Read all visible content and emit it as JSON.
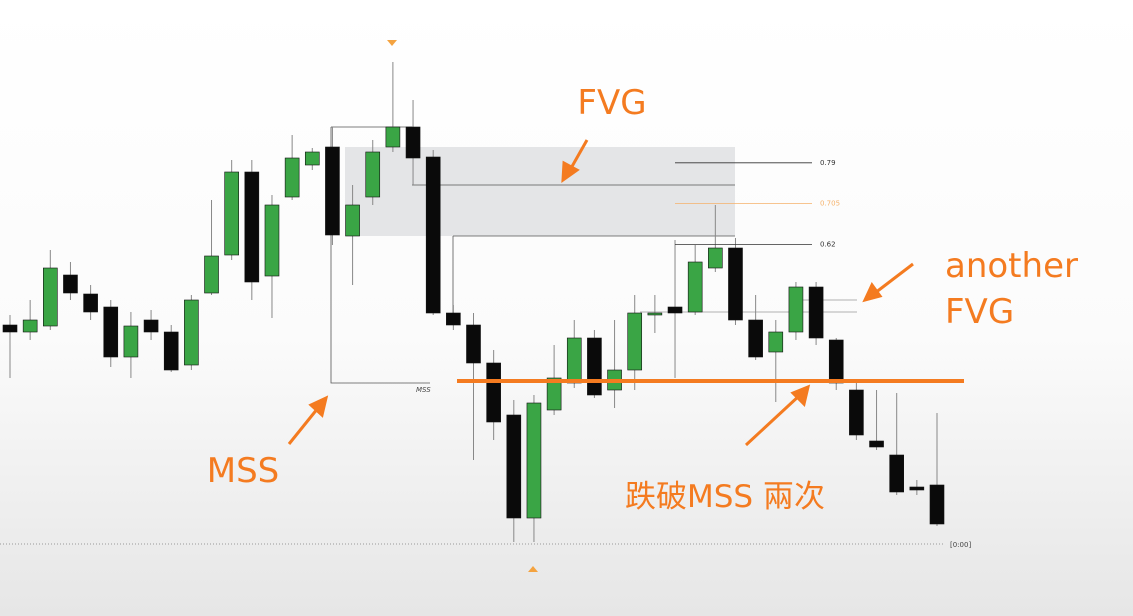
{
  "chart_data": {
    "type": "candlestick",
    "open": [
      44,
      42.6,
      43.8,
      54,
      50.2,
      47.6,
      37.6,
      45,
      42.6,
      36,
      50.4,
      58,
      74.6,
      53.8,
      69.6,
      76,
      79.6,
      61.8,
      69.6,
      79.6,
      83.6,
      77.6,
      46.4,
      44,
      36.4,
      26,
      5.4,
      27,
      32.4,
      41.4,
      31,
      35,
      46,
      47.6,
      46.6,
      55.4,
      59.4,
      45,
      38.6,
      42.6,
      51.6,
      41,
      31,
      20.8,
      18,
      11.6,
      12
    ],
    "high": [
      46,
      49,
      59,
      56.6,
      52,
      49,
      46.6,
      47,
      44,
      50,
      69,
      77,
      77,
      70,
      82,
      79.4,
      83.6,
      72,
      81,
      96.6,
      89,
      79,
      48,
      46.4,
      39,
      29,
      30,
      40,
      45,
      43,
      45,
      50,
      50,
      61,
      60,
      68,
      61.4,
      50,
      45,
      52.6,
      52.6,
      41.4,
      33,
      31,
      30.4,
      13,
      26.4
    ],
    "low": [
      33.4,
      41,
      43,
      49,
      45,
      35.6,
      33.4,
      41,
      34.6,
      35,
      50,
      57,
      49,
      45.4,
      69,
      75,
      60,
      52,
      68,
      78.6,
      72,
      46,
      43,
      17,
      21,
      0.6,
      0.6,
      26,
      31.4,
      29.4,
      27.4,
      31,
      42.4,
      33.4,
      46,
      54.6,
      44,
      37,
      28.6,
      41,
      40,
      31,
      21,
      19,
      10,
      10,
      3.8
    ],
    "close": [
      42.6,
      45,
      55.4,
      50.4,
      46.6,
      37.6,
      43.8,
      42.6,
      35,
      49,
      57.8,
      74.6,
      52.6,
      68,
      77.4,
      78.6,
      62,
      68,
      78.6,
      83.6,
      77.4,
      46.4,
      44,
      36.4,
      24.6,
      5.4,
      28.4,
      33.4,
      41.4,
      30,
      35,
      46.4,
      46.4,
      46.4,
      56.6,
      59.4,
      45,
      37.6,
      42.6,
      51.6,
      41.4,
      32.4,
      22,
      19.6,
      10.6,
      11,
      4.2
    ],
    "up_color": "#3aa545",
    "down_color": "#0a0a0a",
    "ylim": [
      0,
      101
    ],
    "fib_levels": [
      0.79,
      0.705,
      0.62
    ],
    "fib_colors": [
      "#333333",
      "#f5b26b",
      "#333333"
    ],
    "annotations": {
      "fvg": "FVG",
      "mss": "MSS",
      "another_fvg": [
        "another",
        "FVG"
      ],
      "mss_break": "跌破MSS 兩次"
    },
    "mss_label": "MSS",
    "time_label": "[0:00]"
  }
}
